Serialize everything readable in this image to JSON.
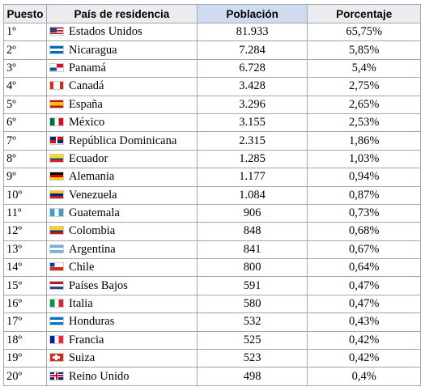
{
  "table": {
    "headers": [
      "Puesto",
      "País de residencia",
      "Población",
      "Porcentaje"
    ],
    "rows": [
      [
        "1º",
        "Estados Unidos",
        "81.933",
        "65,75%"
      ],
      [
        "2º",
        "Nicaragua",
        "7.284",
        "5,85%"
      ],
      [
        "3º",
        "Panamá",
        "6.728",
        "5,4%"
      ],
      [
        "4º",
        "Canadá",
        "3.428",
        "2,75%"
      ],
      [
        "5º",
        "España",
        "3.296",
        "2,65%"
      ],
      [
        "6º",
        "México",
        "3.155",
        "2,53%"
      ],
      [
        "7º",
        "República Dominicana",
        "2.315",
        "1,86%"
      ],
      [
        "8º",
        "Ecuador",
        "1.285",
        "1,03%"
      ],
      [
        "9º",
        "Alemania",
        "1.177",
        "0,94%"
      ],
      [
        "10º",
        "Venezuela",
        "1.084",
        "0,87%"
      ],
      [
        "11º",
        "Guatemala",
        "906",
        "0,73%"
      ],
      [
        "12º",
        "Colombia",
        "848",
        "0,68%"
      ],
      [
        "13º",
        "Argentina",
        "841",
        "0,67%"
      ],
      [
        "14º",
        "Chile",
        "800",
        "0,64%"
      ],
      [
        "15º",
        "Países Bajos",
        "591",
        "0,47%"
      ],
      [
        "16º",
        "Italia",
        "580",
        "0,47%"
      ],
      [
        "17º",
        "Honduras",
        "532",
        "0,43%"
      ],
      [
        "18º",
        "Francia",
        "525",
        "0,42%"
      ],
      [
        "19º",
        "Suiza",
        "523",
        "0,42%"
      ],
      [
        "20º",
        "Reino Unido",
        "498",
        "0,4%"
      ]
    ]
  }
}
